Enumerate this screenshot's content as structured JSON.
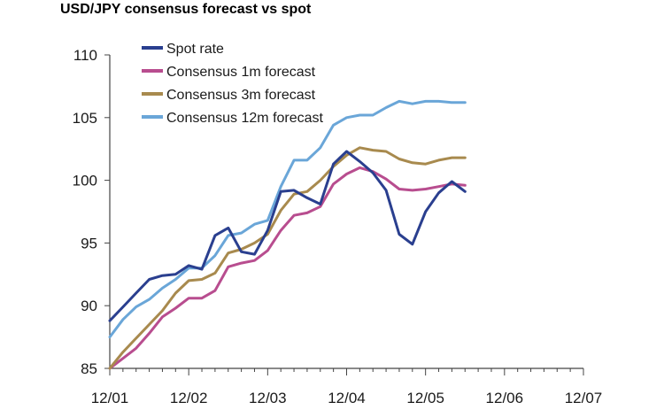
{
  "chart_data": {
    "type": "line",
    "title": "USD/JPY consensus forecast vs spot",
    "xlabel": "",
    "ylabel": "",
    "ylim": [
      85,
      110
    ],
    "yticks": [
      85,
      90,
      95,
      100,
      105,
      110
    ],
    "xlim": [
      "12/01",
      "12/07"
    ],
    "xticks": [
      "12/01",
      "12/02",
      "12/03",
      "12/04",
      "12/05",
      "12/06",
      "12/07"
    ],
    "grid": false,
    "legend_position": "top-left",
    "series": [
      {
        "name": "Spot rate",
        "color": "#2a3f8f",
        "points": [
          [
            "12/01",
            88.8
          ],
          [
            "02/02",
            89.9
          ],
          [
            "04/02",
            91.0
          ],
          [
            "06/02",
            92.1
          ],
          [
            "08/02",
            92.4
          ],
          [
            "10/02",
            92.5
          ],
          [
            "12/02",
            93.2
          ],
          [
            "02/03",
            92.9
          ],
          [
            "04/03",
            95.6
          ],
          [
            "06/03",
            96.2
          ],
          [
            "08/03",
            94.3
          ],
          [
            "10/03",
            94.1
          ],
          [
            "12/03",
            96.0
          ],
          [
            "02/04",
            99.1
          ],
          [
            "04/04",
            99.2
          ],
          [
            "06/04",
            98.6
          ],
          [
            "08/04",
            98.1
          ],
          [
            "10/04",
            101.3
          ],
          [
            "12/04",
            102.3
          ],
          [
            "02/05",
            101.5
          ],
          [
            "04/05",
            100.6
          ],
          [
            "06/05",
            99.2
          ],
          [
            "08/05",
            95.7
          ],
          [
            "10/05",
            94.9
          ],
          [
            "12/05",
            97.5
          ],
          [
            "02/06",
            99.0
          ],
          [
            "04/06",
            99.9
          ],
          [
            "06/06",
            99.1
          ]
        ]
      },
      {
        "name": "Consensus 1m forecast",
        "color": "#b84d8f",
        "points": [
          [
            "12/01",
            85.0
          ],
          [
            "02/02",
            85.8
          ],
          [
            "04/02",
            86.6
          ],
          [
            "06/02",
            87.8
          ],
          [
            "08/02",
            89.1
          ],
          [
            "10/02",
            89.8
          ],
          [
            "12/02",
            90.6
          ],
          [
            "02/03",
            90.6
          ],
          [
            "04/03",
            91.2
          ],
          [
            "06/03",
            93.1
          ],
          [
            "08/03",
            93.4
          ],
          [
            "10/03",
            93.6
          ],
          [
            "12/03",
            94.4
          ],
          [
            "02/04",
            96.0
          ],
          [
            "04/04",
            97.2
          ],
          [
            "06/04",
            97.4
          ],
          [
            "08/04",
            97.9
          ],
          [
            "10/04",
            99.7
          ],
          [
            "12/04",
            100.5
          ],
          [
            "02/05",
            101.0
          ],
          [
            "04/05",
            100.7
          ],
          [
            "06/05",
            100.1
          ],
          [
            "08/05",
            99.3
          ],
          [
            "10/05",
            99.2
          ],
          [
            "12/05",
            99.3
          ],
          [
            "02/06",
            99.5
          ],
          [
            "04/06",
            99.7
          ],
          [
            "06/06",
            99.6
          ]
        ]
      },
      {
        "name": "Consensus 3m forecast",
        "color": "#a88a4e",
        "points": [
          [
            "12/01",
            85.0
          ],
          [
            "02/02",
            86.3
          ],
          [
            "04/02",
            87.4
          ],
          [
            "06/02",
            88.5
          ],
          [
            "08/02",
            89.6
          ],
          [
            "10/02",
            91.0
          ],
          [
            "12/02",
            92.0
          ],
          [
            "02/03",
            92.1
          ],
          [
            "04/03",
            92.6
          ],
          [
            "06/03",
            94.2
          ],
          [
            "08/03",
            94.5
          ],
          [
            "10/03",
            95.0
          ],
          [
            "12/03",
            95.7
          ],
          [
            "02/04",
            97.6
          ],
          [
            "04/04",
            98.9
          ],
          [
            "06/04",
            99.1
          ],
          [
            "08/04",
            100.0
          ],
          [
            "10/04",
            101.1
          ],
          [
            "12/04",
            102.0
          ],
          [
            "02/05",
            102.6
          ],
          [
            "04/05",
            102.4
          ],
          [
            "06/05",
            102.3
          ],
          [
            "08/05",
            101.7
          ],
          [
            "10/05",
            101.4
          ],
          [
            "12/05",
            101.3
          ],
          [
            "02/06",
            101.6
          ],
          [
            "04/06",
            101.8
          ],
          [
            "06/06",
            101.8
          ]
        ]
      },
      {
        "name": "Consensus 12m forecast",
        "color": "#6aa6d8",
        "points": [
          [
            "12/01",
            87.5
          ],
          [
            "02/02",
            88.9
          ],
          [
            "04/02",
            89.9
          ],
          [
            "06/02",
            90.5
          ],
          [
            "08/02",
            91.4
          ],
          [
            "10/02",
            92.1
          ],
          [
            "12/02",
            93.0
          ],
          [
            "02/03",
            93.0
          ],
          [
            "04/03",
            94.0
          ],
          [
            "06/03",
            95.6
          ],
          [
            "08/03",
            95.8
          ],
          [
            "10/03",
            96.5
          ],
          [
            "12/03",
            96.8
          ],
          [
            "02/04",
            99.5
          ],
          [
            "04/04",
            101.6
          ],
          [
            "06/04",
            101.6
          ],
          [
            "08/04",
            102.6
          ],
          [
            "10/04",
            104.4
          ],
          [
            "12/04",
            105.0
          ],
          [
            "02/05",
            105.2
          ],
          [
            "04/05",
            105.2
          ],
          [
            "06/05",
            105.8
          ],
          [
            "08/05",
            106.3
          ],
          [
            "10/05",
            106.1
          ],
          [
            "12/05",
            106.3
          ],
          [
            "02/06",
            106.3
          ],
          [
            "04/06",
            106.2
          ],
          [
            "06/06",
            106.2
          ]
        ]
      }
    ]
  }
}
